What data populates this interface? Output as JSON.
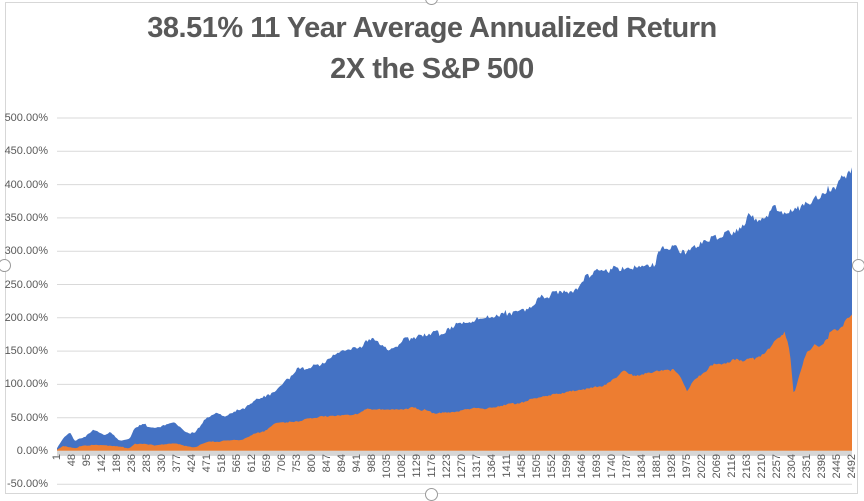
{
  "chart_data": {
    "type": "area",
    "title": {
      "line1": "38.51% 11 Year Average Annualized Return",
      "line2": "2X the S&P 500"
    },
    "y_axis": {
      "min": -50,
      "max": 500,
      "step": 50,
      "tick_labels": [
        "500.00%",
        "450.00%",
        "400.00%",
        "350.00%",
        "300.00%",
        "250.00%",
        "200.00%",
        "150.00%",
        "100.00%",
        "50.00%",
        "0.00%",
        "-50.00%"
      ],
      "tick_values": [
        500,
        450,
        400,
        350,
        300,
        250,
        200,
        150,
        100,
        50,
        0,
        -50
      ]
    },
    "x_axis": {
      "first_category": 1,
      "last_category": 2492,
      "tick_labels": [
        "1",
        "48",
        "95",
        "142",
        "189",
        "236",
        "283",
        "330",
        "377",
        "424",
        "471",
        "518",
        "565",
        "612",
        "659",
        "706",
        "753",
        "800",
        "847",
        "894",
        "941",
        "988",
        "1035",
        "1082",
        "1129",
        "1176",
        "1223",
        "1270",
        "1317",
        "1364",
        "1411",
        "1458",
        "1505",
        "1552",
        "1599",
        "1646",
        "1693",
        "1740",
        "1787",
        "1834",
        "1881",
        "1928",
        "1975",
        "2022",
        "2069",
        "2116",
        "2163",
        "2210",
        "2257",
        "2304",
        "2351",
        "2398",
        "2445",
        "2492"
      ]
    },
    "series": [
      {
        "id": "blue",
        "color": "#4472C4",
        "points": [
          [
            1,
            4
          ],
          [
            25,
            22
          ],
          [
            41,
            28
          ],
          [
            56,
            15
          ],
          [
            88,
            20
          ],
          [
            119,
            33
          ],
          [
            150,
            25
          ],
          [
            166,
            28
          ],
          [
            197,
            15
          ],
          [
            229,
            17
          ],
          [
            244,
            34
          ],
          [
            276,
            40
          ],
          [
            307,
            35
          ],
          [
            339,
            38
          ],
          [
            370,
            43
          ],
          [
            401,
            30
          ],
          [
            433,
            26
          ],
          [
            464,
            48
          ],
          [
            495,
            55
          ],
          [
            527,
            52
          ],
          [
            558,
            60
          ],
          [
            589,
            63
          ],
          [
            621,
            78
          ],
          [
            652,
            85
          ],
          [
            668,
            82
          ],
          [
            699,
            97
          ],
          [
            746,
            120
          ],
          [
            777,
            125
          ],
          [
            809,
            128
          ],
          [
            840,
            136
          ],
          [
            871,
            143
          ],
          [
            903,
            150
          ],
          [
            934,
            157
          ],
          [
            965,
            161
          ],
          [
            987,
            166
          ],
          [
            1028,
            153
          ],
          [
            1059,
            158
          ],
          [
            1091,
            166
          ],
          [
            1122,
            170
          ],
          [
            1153,
            173
          ],
          [
            1184,
            176
          ],
          [
            1216,
            178
          ],
          [
            1247,
            185
          ],
          [
            1279,
            195
          ],
          [
            1310,
            196
          ],
          [
            1342,
            198
          ],
          [
            1373,
            197
          ],
          [
            1404,
            208
          ],
          [
            1436,
            211
          ],
          [
            1467,
            216
          ],
          [
            1498,
            221
          ],
          [
            1530,
            236
          ],
          [
            1561,
            238
          ],
          [
            1592,
            241
          ],
          [
            1624,
            238
          ],
          [
            1655,
            256
          ],
          [
            1686,
            266
          ],
          [
            1718,
            268
          ],
          [
            1749,
            271
          ],
          [
            1780,
            274
          ],
          [
            1812,
            276
          ],
          [
            1843,
            281
          ],
          [
            1874,
            284
          ],
          [
            1906,
            304
          ],
          [
            1937,
            306
          ],
          [
            1969,
            302
          ],
          [
            2000,
            304
          ],
          [
            2031,
            310
          ],
          [
            2062,
            316
          ],
          [
            2094,
            320
          ],
          [
            2125,
            324
          ],
          [
            2156,
            346
          ],
          [
            2188,
            350
          ],
          [
            2219,
            354
          ],
          [
            2250,
            361
          ],
          [
            2282,
            354
          ],
          [
            2297,
            358
          ],
          [
            2313,
            366
          ],
          [
            2344,
            376
          ],
          [
            2375,
            384
          ],
          [
            2391,
            380
          ],
          [
            2407,
            387
          ],
          [
            2438,
            402
          ],
          [
            2469,
            417
          ],
          [
            2492,
            426
          ]
        ]
      },
      {
        "id": "orange",
        "color": "#ED7D31",
        "points": [
          [
            1,
            2
          ],
          [
            25,
            8
          ],
          [
            56,
            5
          ],
          [
            119,
            10
          ],
          [
            166,
            8
          ],
          [
            229,
            4
          ],
          [
            244,
            11
          ],
          [
            307,
            9
          ],
          [
            370,
            12
          ],
          [
            401,
            8
          ],
          [
            433,
            6
          ],
          [
            464,
            13
          ],
          [
            527,
            15
          ],
          [
            589,
            18
          ],
          [
            621,
            26
          ],
          [
            652,
            30
          ],
          [
            683,
            42
          ],
          [
            746,
            43
          ],
          [
            809,
            50
          ],
          [
            871,
            53
          ],
          [
            934,
            55
          ],
          [
            965,
            63
          ],
          [
            997,
            64
          ],
          [
            1060,
            63
          ],
          [
            1122,
            65
          ],
          [
            1185,
            57
          ],
          [
            1247,
            59
          ],
          [
            1310,
            65
          ],
          [
            1342,
            63
          ],
          [
            1404,
            70
          ],
          [
            1467,
            75
          ],
          [
            1530,
            83
          ],
          [
            1592,
            88
          ],
          [
            1655,
            93
          ],
          [
            1718,
            100
          ],
          [
            1749,
            108
          ],
          [
            1780,
            120
          ],
          [
            1812,
            113
          ],
          [
            1843,
            116
          ],
          [
            1874,
            120
          ],
          [
            1906,
            123
          ],
          [
            1937,
            120
          ],
          [
            1950,
            112
          ],
          [
            1975,
            90
          ],
          [
            2000,
            110
          ],
          [
            2031,
            120
          ],
          [
            2062,
            130
          ],
          [
            2094,
            133
          ],
          [
            2125,
            135
          ],
          [
            2156,
            138
          ],
          [
            2188,
            140
          ],
          [
            2219,
            147
          ],
          [
            2250,
            165
          ],
          [
            2281,
            178
          ],
          [
            2297,
            150
          ],
          [
            2310,
            85
          ],
          [
            2322,
            108
          ],
          [
            2344,
            143
          ],
          [
            2360,
            150
          ],
          [
            2375,
            160
          ],
          [
            2391,
            157
          ],
          [
            2407,
            168
          ],
          [
            2438,
            180
          ],
          [
            2469,
            192
          ],
          [
            2482,
            198
          ],
          [
            2492,
            205
          ]
        ]
      }
    ],
    "colors": {
      "title_text": "#595959",
      "axis_text": "#595959",
      "gridline": "#D9D9D9",
      "axis_band": "#D6D6D6",
      "chart_border": "#D7D7D7"
    },
    "grid": "horizontal-only",
    "legend": "none"
  }
}
